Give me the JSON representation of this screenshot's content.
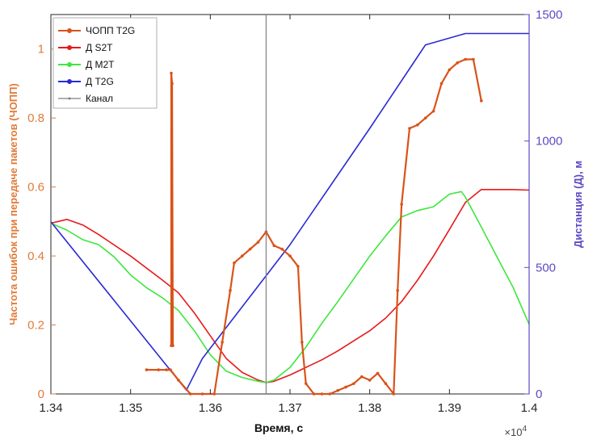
{
  "chart_data": {
    "type": "line",
    "xlabel": "Время, с",
    "x_exponent_label": "×10",
    "x_exponent_power": "4",
    "ylabel_left": "Частота ошибок при передаче пакетов (ЧОПП)",
    "ylabel_right": "Дистанция (Д), м",
    "xlim": [
      13400,
      14000
    ],
    "ylim_left": [
      0,
      1.1
    ],
    "ylim_right": [
      0,
      1500
    ],
    "x_ticks": [
      13400,
      13500,
      13600,
      13700,
      13800,
      13900,
      14000
    ],
    "x_tick_labels": [
      "1.34",
      "1.35",
      "1.36",
      "1.37",
      "1.38",
      "1.39",
      "1.4"
    ],
    "y_left_ticks": [
      0,
      0.2,
      0.4,
      0.6,
      0.8,
      1
    ],
    "y_left_tick_labels": [
      "0",
      "0.2",
      "0.4",
      "0.6",
      "0.8",
      "1"
    ],
    "y_right_ticks": [
      0,
      500,
      1000,
      1500
    ],
    "y_right_tick_labels": [
      "0",
      "500",
      "1000",
      "1500"
    ],
    "colors": {
      "left_axis": "#e07b39",
      "right_axis": "#5b4bc4",
      "per": "#d95319",
      "s2t": "#e8191c",
      "m2t": "#3ee63e",
      "t2g": "#2a2ad4",
      "channel": "#808080"
    },
    "legend": {
      "placement": "top-left",
      "entries": [
        "ЧОПП T2G",
        "Д S2T",
        "Д M2T",
        "Д T2G",
        "Канал"
      ]
    },
    "channel_x": 13670,
    "series": [
      {
        "name": "Д S2T",
        "axis": "right",
        "x": [
          13400,
          13420,
          13440,
          13460,
          13500,
          13540,
          13560,
          13580,
          13600,
          13620,
          13640,
          13660,
          13670,
          13680,
          13700,
          13720,
          13740,
          13760,
          13780,
          13800,
          13820,
          13840,
          13860,
          13880,
          13900,
          13920,
          13940,
          13960,
          13980,
          14000
        ],
        "y": [
          675,
          690,
          668,
          630,
          545,
          450,
          400,
          320,
          230,
          140,
          85,
          55,
          45,
          50,
          75,
          105,
          135,
          170,
          210,
          250,
          300,
          365,
          450,
          545,
          650,
          757,
          808,
          808,
          808,
          806
        ]
      },
      {
        "name": "Д M2T",
        "axis": "right",
        "x": [
          13400,
          13420,
          13440,
          13460,
          13480,
          13500,
          13520,
          13540,
          13560,
          13580,
          13600,
          13620,
          13640,
          13660,
          13670,
          13680,
          13700,
          13720,
          13740,
          13760,
          13780,
          13800,
          13820,
          13840,
          13860,
          13880,
          13900,
          13915,
          13920,
          13940,
          13960,
          13980,
          14000
        ],
        "y": [
          675,
          648,
          610,
          590,
          540,
          470,
          420,
          380,
          330,
          250,
          155,
          90,
          65,
          50,
          45,
          55,
          105,
          185,
          280,
          365,
          455,
          545,
          625,
          700,
          725,
          740,
          790,
          800,
          778,
          660,
          540,
          420,
          275
        ]
      },
      {
        "name": "Д T2G",
        "axis": "right",
        "x": [
          13400,
          13570,
          13590,
          13700,
          13800,
          13870,
          13920,
          13940,
          14000
        ],
        "y": [
          680,
          15,
          140,
          590,
          1050,
          1380,
          1425,
          1425,
          1425
        ]
      },
      {
        "name": "ЧОПП T2G",
        "axis": "left",
        "x": [
          13520,
          13535,
          13545,
          13550,
          13560,
          13575,
          13590,
          13605,
          13615,
          13625,
          13630,
          13640,
          13650,
          13660,
          13670,
          13680,
          13690,
          13700,
          13710,
          13715,
          13720,
          13730,
          13740,
          13750,
          13760,
          13770,
          13780,
          13790,
          13800,
          13810,
          13820,
          13830,
          13835,
          13840,
          13850,
          13860,
          13870,
          13880,
          13890,
          13900,
          13910,
          13920,
          13930,
          13940
        ],
        "y": [
          0.07,
          0.07,
          0.07,
          0.07,
          0.04,
          0.0,
          0.0,
          0.0,
          0.15,
          0.3,
          0.38,
          0.4,
          0.42,
          0.44,
          0.47,
          0.43,
          0.42,
          0.4,
          0.37,
          0.15,
          0.03,
          0.0,
          0.0,
          0.0,
          0.01,
          0.02,
          0.03,
          0.05,
          0.04,
          0.06,
          0.03,
          0.0,
          0.3,
          0.55,
          0.77,
          0.78,
          0.8,
          0.82,
          0.9,
          0.94,
          0.96,
          0.97,
          0.97,
          0.85
        ]
      },
      {
        "name": "ЧОПП T2G spike",
        "axis": "left",
        "x": [
          13551,
          13551,
          13552,
          13553
        ],
        "y": [
          0.14,
          0.93,
          0.9,
          0.14
        ]
      }
    ]
  }
}
